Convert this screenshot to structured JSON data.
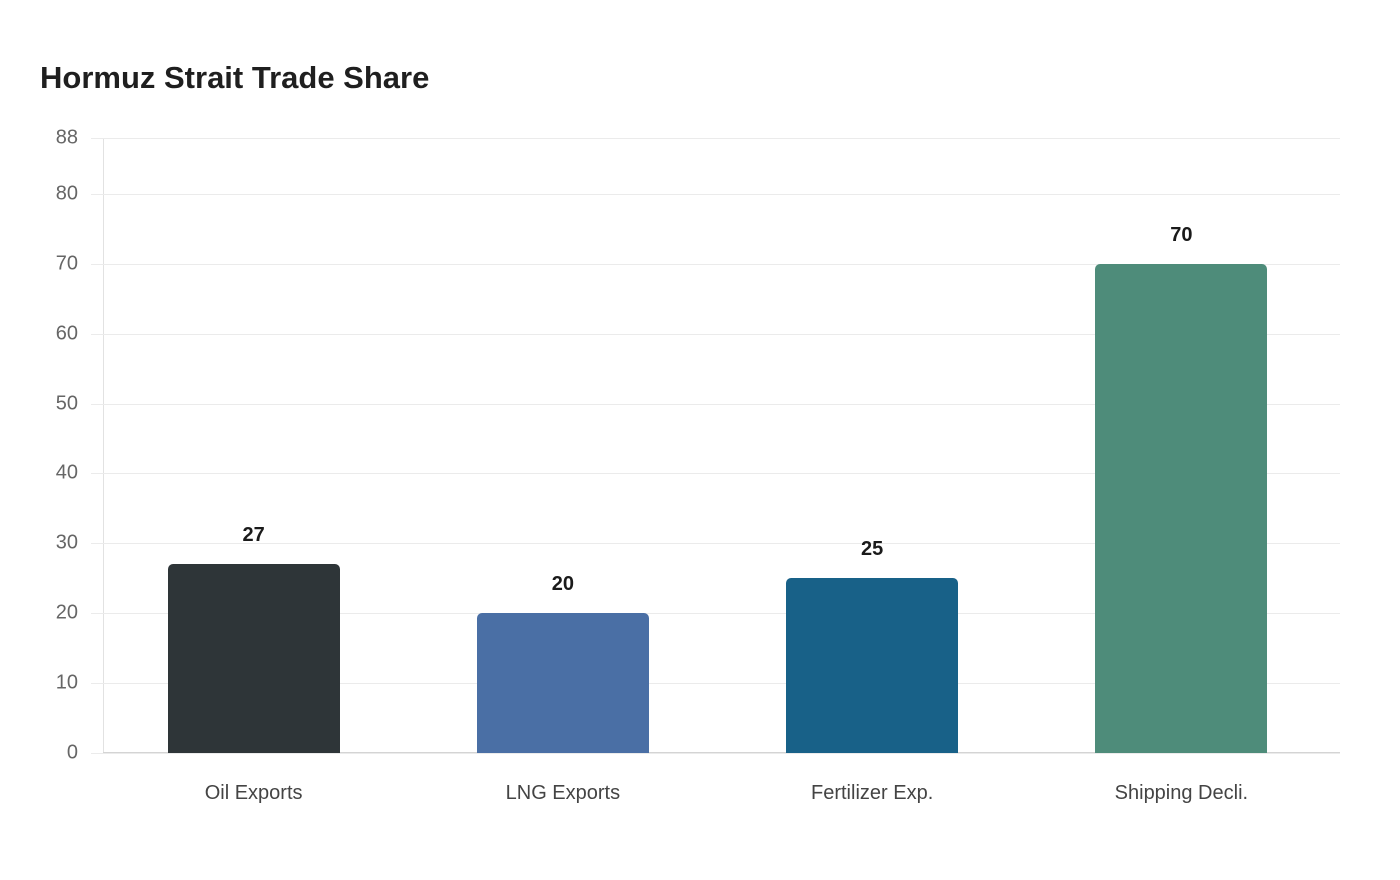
{
  "chart_data": {
    "type": "bar",
    "title": "Hormuz Strait Trade Share",
    "xlabel": "",
    "ylabel": "",
    "categories": [
      "Oil Exports",
      "LNG Exports",
      "Fertilizer Exp.",
      "Shipping Decli."
    ],
    "values": [
      27,
      20,
      25,
      70
    ],
    "colors": [
      "#2e3538",
      "#4a6fa5",
      "#186188",
      "#4e8c7a"
    ],
    "ylim": [
      0,
      88
    ],
    "yticks": [
      0,
      10,
      20,
      30,
      40,
      50,
      60,
      70,
      80,
      88
    ],
    "grid": true,
    "legend": null,
    "data_labels": [
      "27",
      "20",
      "25",
      "70"
    ]
  }
}
